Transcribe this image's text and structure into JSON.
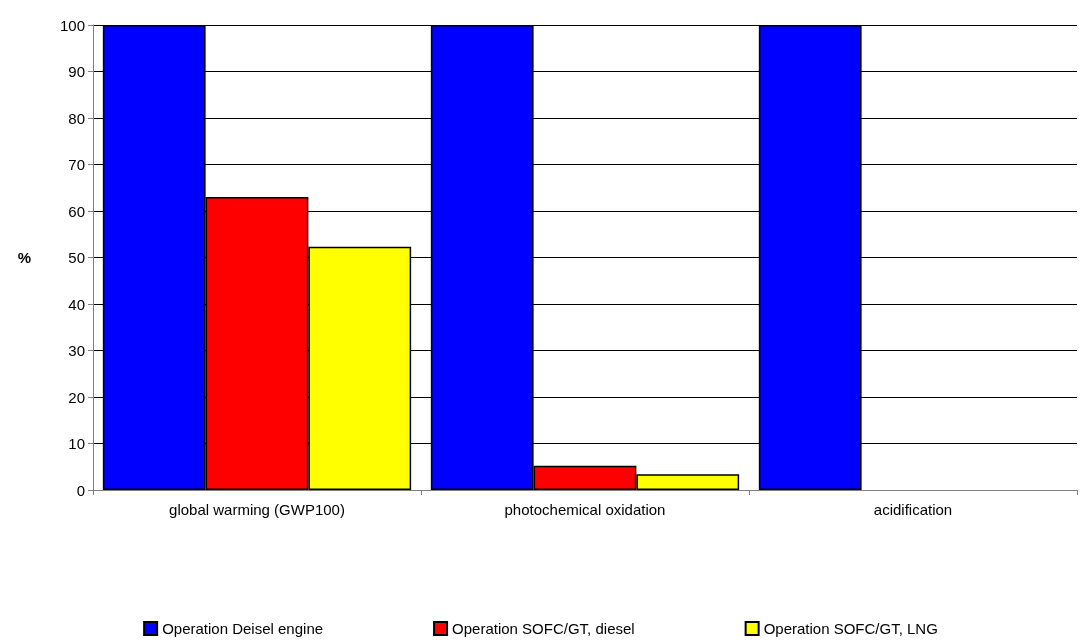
{
  "chart_data": {
    "type": "bar",
    "ylabel": "%",
    "categories": [
      "global warming (GWP100)",
      "photochemical oxidation",
      "acidification"
    ],
    "series": [
      {
        "name": "Operation Deisel engine",
        "color": "#0000ff",
        "values": [
          100,
          100,
          100
        ]
      },
      {
        "name": "Operation SOFC/GT, diesel",
        "color": "#ff0000",
        "values": [
          63,
          5.2,
          0
        ]
      },
      {
        "name": "Operation SOFC/GT, LNG",
        "color": "#ffff00",
        "values": [
          52.3,
          3.4,
          0
        ]
      }
    ],
    "ylim": [
      0,
      100
    ],
    "yticks": [
      0,
      10,
      20,
      30,
      40,
      50,
      60,
      70,
      80,
      90,
      100
    ],
    "grid": "y",
    "legend": "bottom"
  }
}
